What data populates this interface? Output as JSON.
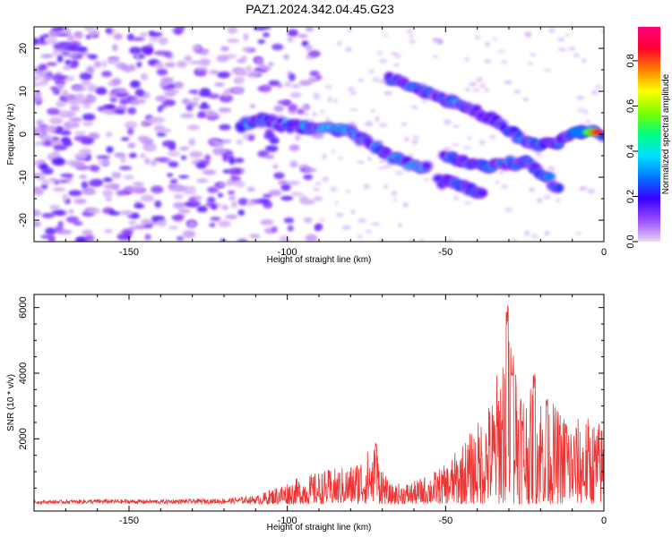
{
  "title": "PAZ1.2024.342.04.45.G23",
  "chart_data": [
    {
      "type": "heatmap",
      "xlabel": "Height of straight line (km)",
      "ylabel": "Frequency (Hz)",
      "xlim": [
        -180,
        0
      ],
      "ylim": [
        -25,
        25
      ],
      "xticks": [
        -150,
        -100,
        -50,
        0
      ],
      "yticks": [
        -20,
        -10,
        0,
        10,
        20
      ],
      "colorbar": {
        "label": "Normalized spectral amplitude",
        "range": [
          0,
          0.95
        ],
        "ticks": [
          0.0,
          0.2,
          0.4,
          0.6,
          0.8
        ],
        "colormap": "rainbow-purple-to-red",
        "stops": [
          "#e8d6f2",
          "#9a4dff",
          "#3a00ff",
          "#0078ff",
          "#00e0ff",
          "#00ff80",
          "#7cff00",
          "#ffff00",
          "#ff8000",
          "#ff0030",
          "#ff0080"
        ]
      },
      "ridges": [
        {
          "name": "main",
          "points": [
            [
              -115,
              2
            ],
            [
              -108,
              3.5
            ],
            [
              -100,
              2
            ],
            [
              -90,
              1
            ],
            [
              -82,
              1
            ],
            [
              -75,
              -1.5
            ],
            [
              -68,
              -5
            ],
            [
              -60,
              -7.5
            ],
            [
              -55,
              -8
            ]
          ]
        },
        {
          "name": "upper",
          "points": [
            [
              -68,
              13
            ],
            [
              -60,
              11
            ],
            [
              -50,
              8
            ],
            [
              -42,
              6
            ],
            [
              -35,
              3.5
            ],
            [
              -30,
              1
            ],
            [
              -25,
              -1.5
            ],
            [
              -20,
              -2.5
            ],
            [
              -15,
              -2
            ],
            [
              -10,
              0.5
            ],
            [
              -5,
              0.5
            ],
            [
              0,
              0
            ]
          ]
        },
        {
          "name": "lower",
          "points": [
            [
              -52,
              -11
            ],
            [
              -48,
              -11
            ],
            [
              -42,
              -13
            ],
            [
              -38,
              -14
            ]
          ]
        },
        {
          "name": "middle",
          "points": [
            [
              -50,
              -5.5
            ],
            [
              -45,
              -6.5
            ],
            [
              -38,
              -7.5
            ],
            [
              -35,
              -7.5
            ],
            [
              -30,
              -7
            ],
            [
              -25,
              -6.5
            ],
            [
              -18,
              -10
            ],
            [
              -14,
              -13
            ]
          ]
        }
      ],
      "peak": {
        "x": -4,
        "y": 0.5,
        "amplitude": 0.95
      }
    },
    {
      "type": "line",
      "xlabel": "Height of straight line (km)",
      "ylabel": "SNR (10 * v/v)",
      "xlim": [
        -180,
        0
      ],
      "ylim": [
        -200,
        6400
      ],
      "xticks": [
        -150,
        -100,
        -50,
        0
      ],
      "yticks": [
        2000,
        4000,
        6000
      ],
      "color": "#ee3333",
      "envelope": [
        {
          "x": -180,
          "y": 100
        },
        {
          "x": -160,
          "y": 140
        },
        {
          "x": -140,
          "y": 130
        },
        {
          "x": -120,
          "y": 160
        },
        {
          "x": -110,
          "y": 250
        },
        {
          "x": -100,
          "y": 700
        },
        {
          "x": -90,
          "y": 1000
        },
        {
          "x": -80,
          "y": 1200
        },
        {
          "x": -72,
          "y": 1900
        },
        {
          "x": -68,
          "y": 600
        },
        {
          "x": -60,
          "y": 700
        },
        {
          "x": -50,
          "y": 1200
        },
        {
          "x": -40,
          "y": 2500
        },
        {
          "x": -35,
          "y": 3400
        },
        {
          "x": -30,
          "y": 6200
        },
        {
          "x": -25,
          "y": 3500
        },
        {
          "x": -20,
          "y": 3600
        },
        {
          "x": -15,
          "y": 3000
        },
        {
          "x": -10,
          "y": 2600
        },
        {
          "x": -5,
          "y": 2700
        },
        {
          "x": 0,
          "y": 2500
        }
      ],
      "spikes": [
        {
          "x": -72,
          "y": 1900
        },
        {
          "x": -30.5,
          "y": 6250
        },
        {
          "x": -29,
          "y": 4600
        },
        {
          "x": -22,
          "y": 4000
        },
        {
          "x": -18,
          "y": 3400
        },
        {
          "x": -12,
          "y": 2500
        }
      ]
    }
  ]
}
